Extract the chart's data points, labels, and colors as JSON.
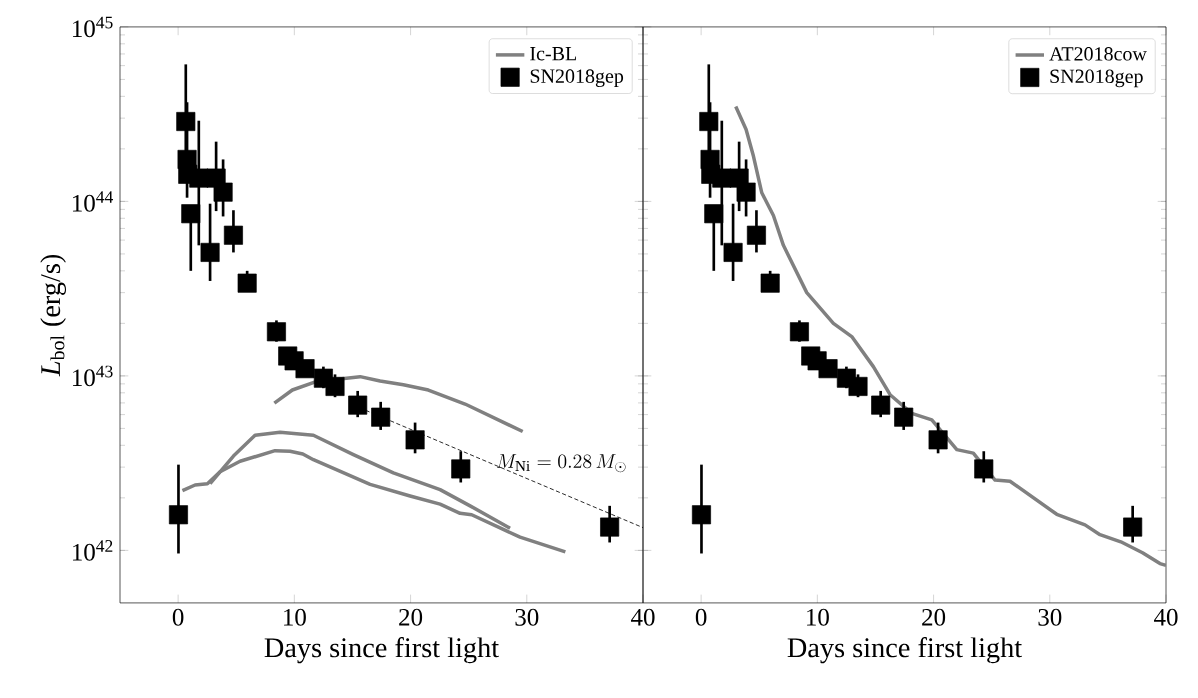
{
  "chart_data": [
    {
      "type": "line",
      "xlabel": "Days since first light",
      "ylabel": "*L*$_{bol}$ (erg/s)",
      "xlim": [
        -5,
        40
      ],
      "xticks": [
        0,
        10,
        20,
        30,
        40
      ],
      "ylim": [
        5e+41,
        1e+45
      ],
      "log": "y",
      "yticks": [
        {
          "value": 1e+42,
          "label": "10$^{42}$"
        },
        {
          "value": 1e+43,
          "label": "10$^{43}$"
        },
        {
          "value": 1e+44,
          "label": "10$^{44}$"
        },
        {
          "value": 1e+45,
          "label": "10$^{45}$"
        }
      ],
      "legend": "top right",
      "series": [
        {
          "name": "Ic-BL",
          "color": "#808080",
          "x": [
            8.28,
            9.83,
            11.93,
            15.66,
            17.38,
            19.38,
            21.53,
            24.69,
            29.65
          ],
          "values": [
            6.98e+42,
            8.3e+42,
            9.3e+42,
            9.9e+42,
            9.35e+42,
            8.9e+42,
            8.3e+42,
            6.9e+42,
            4.8e+42
          ]
        },
        {
          "color": "#808080",
          "x": [
            2.75,
            4.76,
            6.62,
            8.77,
            11.64,
            15.08,
            18.52,
            22.54,
            25.12,
            28.56
          ],
          "values": [
            2.41e+42,
            3.47e+42,
            4.57e+42,
            4.75e+42,
            4.57e+42,
            3.54e+42,
            2.78e+42,
            2.23e+42,
            1.8e+42,
            1.34e+42
          ]
        },
        {
          "color": "#808080",
          "x": [
            0.37,
            1.46,
            2.52,
            3.61,
            5.33,
            8.34,
            9.63,
            10.73,
            11.64,
            16.52,
            19.96,
            22.54,
            24.26,
            25.26,
            29.42,
            33.32
          ],
          "values": [
            2.2e+42,
            2.37e+42,
            2.41e+42,
            2.82e+42,
            3.24e+42,
            3.73e+42,
            3.7e+42,
            3.57e+42,
            3.31e+42,
            2.39e+42,
            2.05e+42,
            1.84e+42,
            1.63e+42,
            1.6e+42,
            1.19e+42,
            9.8e+41
          ]
        },
        {
          "color": "#000000",
          "line_style": "dashed",
          "x": [
            15.08,
            29.42,
            40
          ],
          "values": [
            6.8e+42,
            2.68e+42,
            1.35e+42
          ]
        },
        {
          "name": "SN2018gep",
          "type": "scatter",
          "marker": "square",
          "color": "#000000",
          "x": [
            0.03,
            0.66,
            0.77,
            0.83,
            1.09,
            1.78,
            2.75,
            3.27,
            3.87,
            4.76,
            5.94,
            8.46,
            9.43,
            9.98,
            10.92,
            12.5,
            13.5,
            15.45,
            17.43,
            20.39,
            24.32,
            37.13
          ],
          "values": [
            1.6e+42,
            2.87e+44,
            1.74e+44,
            1.43e+44,
            8.5e+43,
            1.36e+44,
            5.1e+43,
            1.36e+44,
            1.13e+44,
            6.4e+43,
            3.4e+43,
            1.79e+43,
            1.3e+43,
            1.22e+43,
            1.1e+43,
            9.7e+42,
            8.7e+42,
            6.8e+42,
            5.8e+42,
            4.3e+42,
            2.93e+42,
            1.36e+42
          ],
          "errors": [
            [
              9.6e+41,
              3.1e+42
            ],
            [
              1.3e+44,
              6.1e+44
            ],
            [
              1.05e+44,
              3.7e+44
            ],
            null,
            [
              4e+43,
              8.5e+43
            ],
            [
              5.6e+43,
              2.9e+44
            ],
            [
              3.5e+43,
              9.7e+43
            ],
            [
              8.8e+43,
              2.2e+44
            ],
            [
              8.2e+43,
              1.74e+44
            ],
            [
              5.1e+43,
              8.9e+43
            ],
            [
              3.4e+43,
              4e+43
            ],
            [
              1.57e+43,
              2.08e+43
            ],
            [
              1.18e+43,
              1.43e+43
            ],
            [
              1.1e+43,
              1.35e+43
            ],
            [
              9.96e+42,
              1.23e+43
            ],
            [
              8.5e+42,
              1.13e+43
            ],
            [
              7.55e+42,
              1.02e+43
            ],
            [
              5.8e+42,
              8.2e+42
            ],
            [
              4.9e+42,
              7.1e+42
            ],
            [
              3.6e+42,
              5.4e+42
            ],
            [
              2.45e+42,
              3.7e+42
            ],
            [
              1.11e+42,
              1.8e+42
            ]
          ]
        }
      ],
      "annotations": [
        {
          "text": "M_{\\rm Ni} = 0.28\\,M_\\odot",
          "x": 33,
          "y": 2.13e+42
        }
      ]
    },
    {
      "type": "line",
      "xlabel": "Days since first light",
      "xlim": [
        -5,
        40
      ],
      "xticks": [
        0,
        10,
        20,
        30,
        40
      ],
      "ylim": [
        5e+41,
        1e+45
      ],
      "log": "y",
      "yticks": [
        {
          "value": 1e+42,
          "label": null
        },
        {
          "value": 1e+43,
          "label": null
        },
        {
          "value": 1e+44,
          "label": null
        },
        {
          "value": 1e+45,
          "label": null
        }
      ],
      "tick_labels": "x",
      "legend": "top right",
      "series": [
        {
          "name": "AT2018cow",
          "color": "#808080",
          "x": [
            2.98,
            3.87,
            4.5,
            5.22,
            6.22,
            7.08,
            9.09,
            11.38,
            12.96,
            14.82,
            16.26,
            18.12,
            19.85,
            22.0,
            23.42,
            25.29,
            26.58,
            30.6,
            33.03,
            34.32,
            36.11,
            37.98,
            39.48,
            40
          ],
          "values": [
            3.5e+44,
            2.58e+44,
            1.82e+44,
            1.12e+44,
            8.3e+43,
            5.6e+43,
            3e+43,
            2e+43,
            1.68e+43,
            1.13e+43,
            7.8e+42,
            6.1e+42,
            5.6e+42,
            3.78e+42,
            3.61e+42,
            2.53e+42,
            2.49e+42,
            1.61e+42,
            1.4e+42,
            1.23e+42,
            1.12e+42,
            9.7e+41,
            8.4e+41,
            8.2e+41
          ]
        },
        {
          "name": "SN2018gep",
          "type": "scatter",
          "marker": "square",
          "color": "#000000",
          "x": [
            0.03,
            0.66,
            0.77,
            0.83,
            1.09,
            1.78,
            2.75,
            3.27,
            3.87,
            4.76,
            5.94,
            8.46,
            9.43,
            9.98,
            10.92,
            12.5,
            13.5,
            15.45,
            17.43,
            20.39,
            24.32,
            37.13
          ],
          "values": [
            1.6e+42,
            2.87e+44,
            1.74e+44,
            1.43e+44,
            8.5e+43,
            1.36e+44,
            5.1e+43,
            1.36e+44,
            1.13e+44,
            6.4e+43,
            3.4e+43,
            1.79e+43,
            1.3e+43,
            1.22e+43,
            1.1e+43,
            9.7e+42,
            8.7e+42,
            6.8e+42,
            5.8e+42,
            4.3e+42,
            2.93e+42,
            1.36e+42
          ],
          "errors": [
            [
              9.6e+41,
              3.1e+42
            ],
            [
              1.3e+44,
              6.1e+44
            ],
            [
              1.05e+44,
              3.7e+44
            ],
            null,
            [
              4e+43,
              8.5e+43
            ],
            [
              5.6e+43,
              2.9e+44
            ],
            [
              3.5e+43,
              9.7e+43
            ],
            [
              8.8e+43,
              2.2e+44
            ],
            [
              8.2e+43,
              1.74e+44
            ],
            [
              5.1e+43,
              8.9e+43
            ],
            [
              3.4e+43,
              4e+43
            ],
            [
              1.57e+43,
              2.08e+43
            ],
            [
              1.18e+43,
              1.43e+43
            ],
            [
              1.1e+43,
              1.35e+43
            ],
            [
              9.96e+42,
              1.23e+43
            ],
            [
              8.5e+42,
              1.13e+43
            ],
            [
              7.55e+42,
              1.02e+43
            ],
            [
              5.8e+42,
              8.2e+42
            ],
            [
              4.9e+42,
              7.1e+42
            ],
            [
              3.6e+42,
              5.4e+42
            ],
            [
              2.45e+42,
              3.7e+42
            ],
            [
              1.11e+42,
              1.8e+42
            ]
          ]
        }
      ]
    }
  ]
}
